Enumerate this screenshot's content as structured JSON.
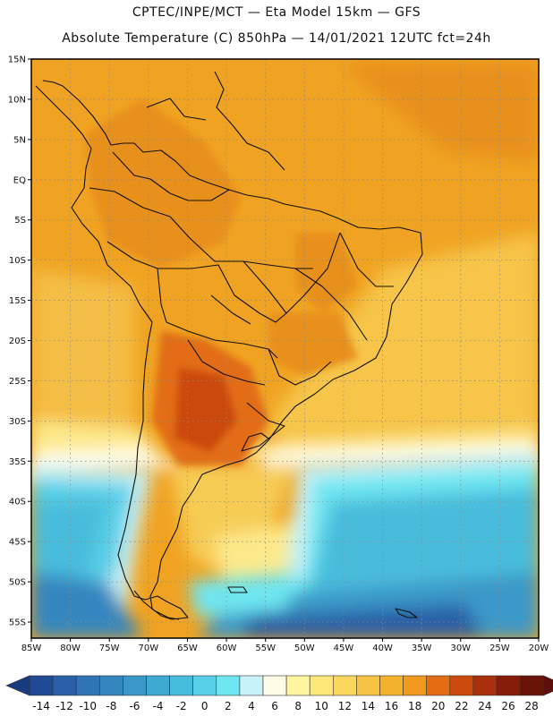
{
  "header": {
    "title_line1": "CPTEC/INPE/MCT —  Eta Model 15km — GFS",
    "title_line2": "Absolute Temperature (C) 850hPa — 14/01/2021 12UTC fct=24h"
  },
  "map": {
    "lat_labels": [
      "15N",
      "10N",
      "5N",
      "EQ",
      "5S",
      "10S",
      "15S",
      "20S",
      "25S",
      "30S",
      "35S",
      "40S",
      "45S",
      "50S",
      "55S"
    ],
    "lon_labels": [
      "85W",
      "80W",
      "75W",
      "70W",
      "65W",
      "60W",
      "55W",
      "50W",
      "45W",
      "40W",
      "35W",
      "30W",
      "25W",
      "20W"
    ],
    "lat_range": [
      15,
      -57
    ],
    "lon_range": [
      -85,
      -20
    ],
    "grid": "dotted"
  },
  "colorbar": {
    "labels": [
      "-14",
      "-12",
      "-10",
      "-8",
      "-6",
      "-4",
      "-2",
      "0",
      "2",
      "4",
      "6",
      "8",
      "10",
      "12",
      "14",
      "16",
      "18",
      "20",
      "22",
      "24",
      "26",
      "28"
    ],
    "colors": [
      "#1f4a94",
      "#2a5ea6",
      "#2f74b4",
      "#3486bf",
      "#3a98c8",
      "#3eaad2",
      "#48bcdc",
      "#58cfe6",
      "#6ee6f0",
      "#c8f2fa",
      "#fffbe6",
      "#fff5a0",
      "#fde77a",
      "#fbd75e",
      "#f5c445",
      "#f3b22b",
      "#ef9a1e",
      "#e26d12",
      "#cc4a0e",
      "#aa2f0c",
      "#861c0a",
      "#6a1408"
    ],
    "low_color": "#1a3a80",
    "high_color": "#5c0f0c"
  }
}
